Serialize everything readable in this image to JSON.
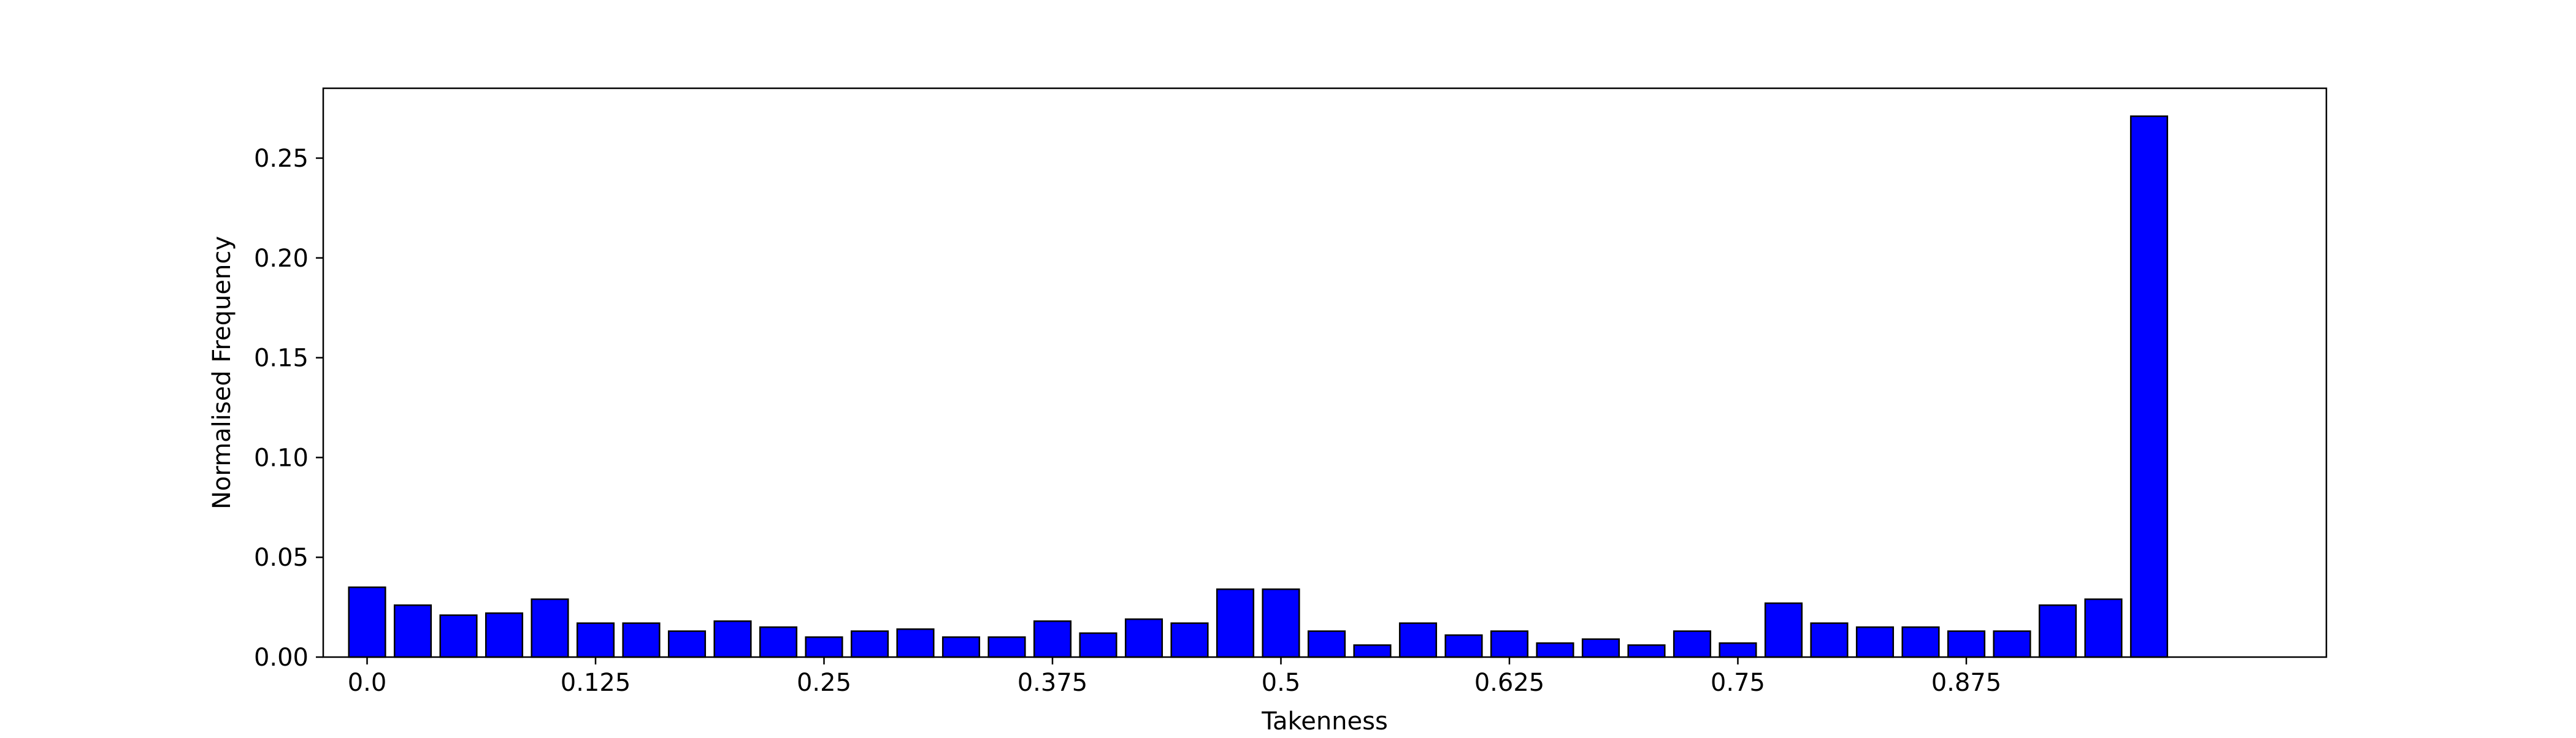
{
  "chart_data": {
    "type": "bar",
    "title": "",
    "xlabel": "Takenness",
    "ylabel": "Normalised Frequency",
    "ylim": [
      0,
      0.285
    ],
    "xlim": [
      -0.024,
      1.072
    ],
    "x_ticks": [
      0.0,
      0.125,
      0.25,
      0.375,
      0.5,
      0.625,
      0.75,
      0.875
    ],
    "x_tick_labels": [
      "0.0",
      "0.125",
      "0.25",
      "0.375",
      "0.5",
      "0.625",
      "0.75",
      "0.875"
    ],
    "y_ticks": [
      0.0,
      0.05,
      0.1,
      0.15,
      0.2,
      0.25
    ],
    "y_tick_labels": [
      "0.00",
      "0.05",
      "0.10",
      "0.15",
      "0.20",
      "0.25"
    ],
    "grid": false,
    "bar_width": 0.02,
    "bar_color": "#0000ff",
    "edge_color": "#000000",
    "x": [
      0.0,
      0.025,
      0.05,
      0.075,
      0.1,
      0.125,
      0.15,
      0.175,
      0.2,
      0.225,
      0.25,
      0.275,
      0.3,
      0.325,
      0.35,
      0.375,
      0.4,
      0.425,
      0.45,
      0.475,
      0.5,
      0.525,
      0.55,
      0.575,
      0.6,
      0.625,
      0.65,
      0.675,
      0.7,
      0.725,
      0.75,
      0.775,
      0.8,
      0.825,
      0.85,
      0.875,
      0.9,
      0.925,
      0.95,
      0.975
    ],
    "values": [
      0.035,
      0.026,
      0.021,
      0.022,
      0.029,
      0.017,
      0.017,
      0.013,
      0.018,
      0.015,
      0.01,
      0.013,
      0.014,
      0.01,
      0.01,
      0.018,
      0.012,
      0.019,
      0.017,
      0.034,
      0.034,
      0.013,
      0.006,
      0.017,
      0.011,
      0.013,
      0.007,
      0.009,
      0.006,
      0.013,
      0.007,
      0.027,
      0.017,
      0.015,
      0.015,
      0.013,
      0.013,
      0.026,
      0.029,
      0.271
    ]
  }
}
